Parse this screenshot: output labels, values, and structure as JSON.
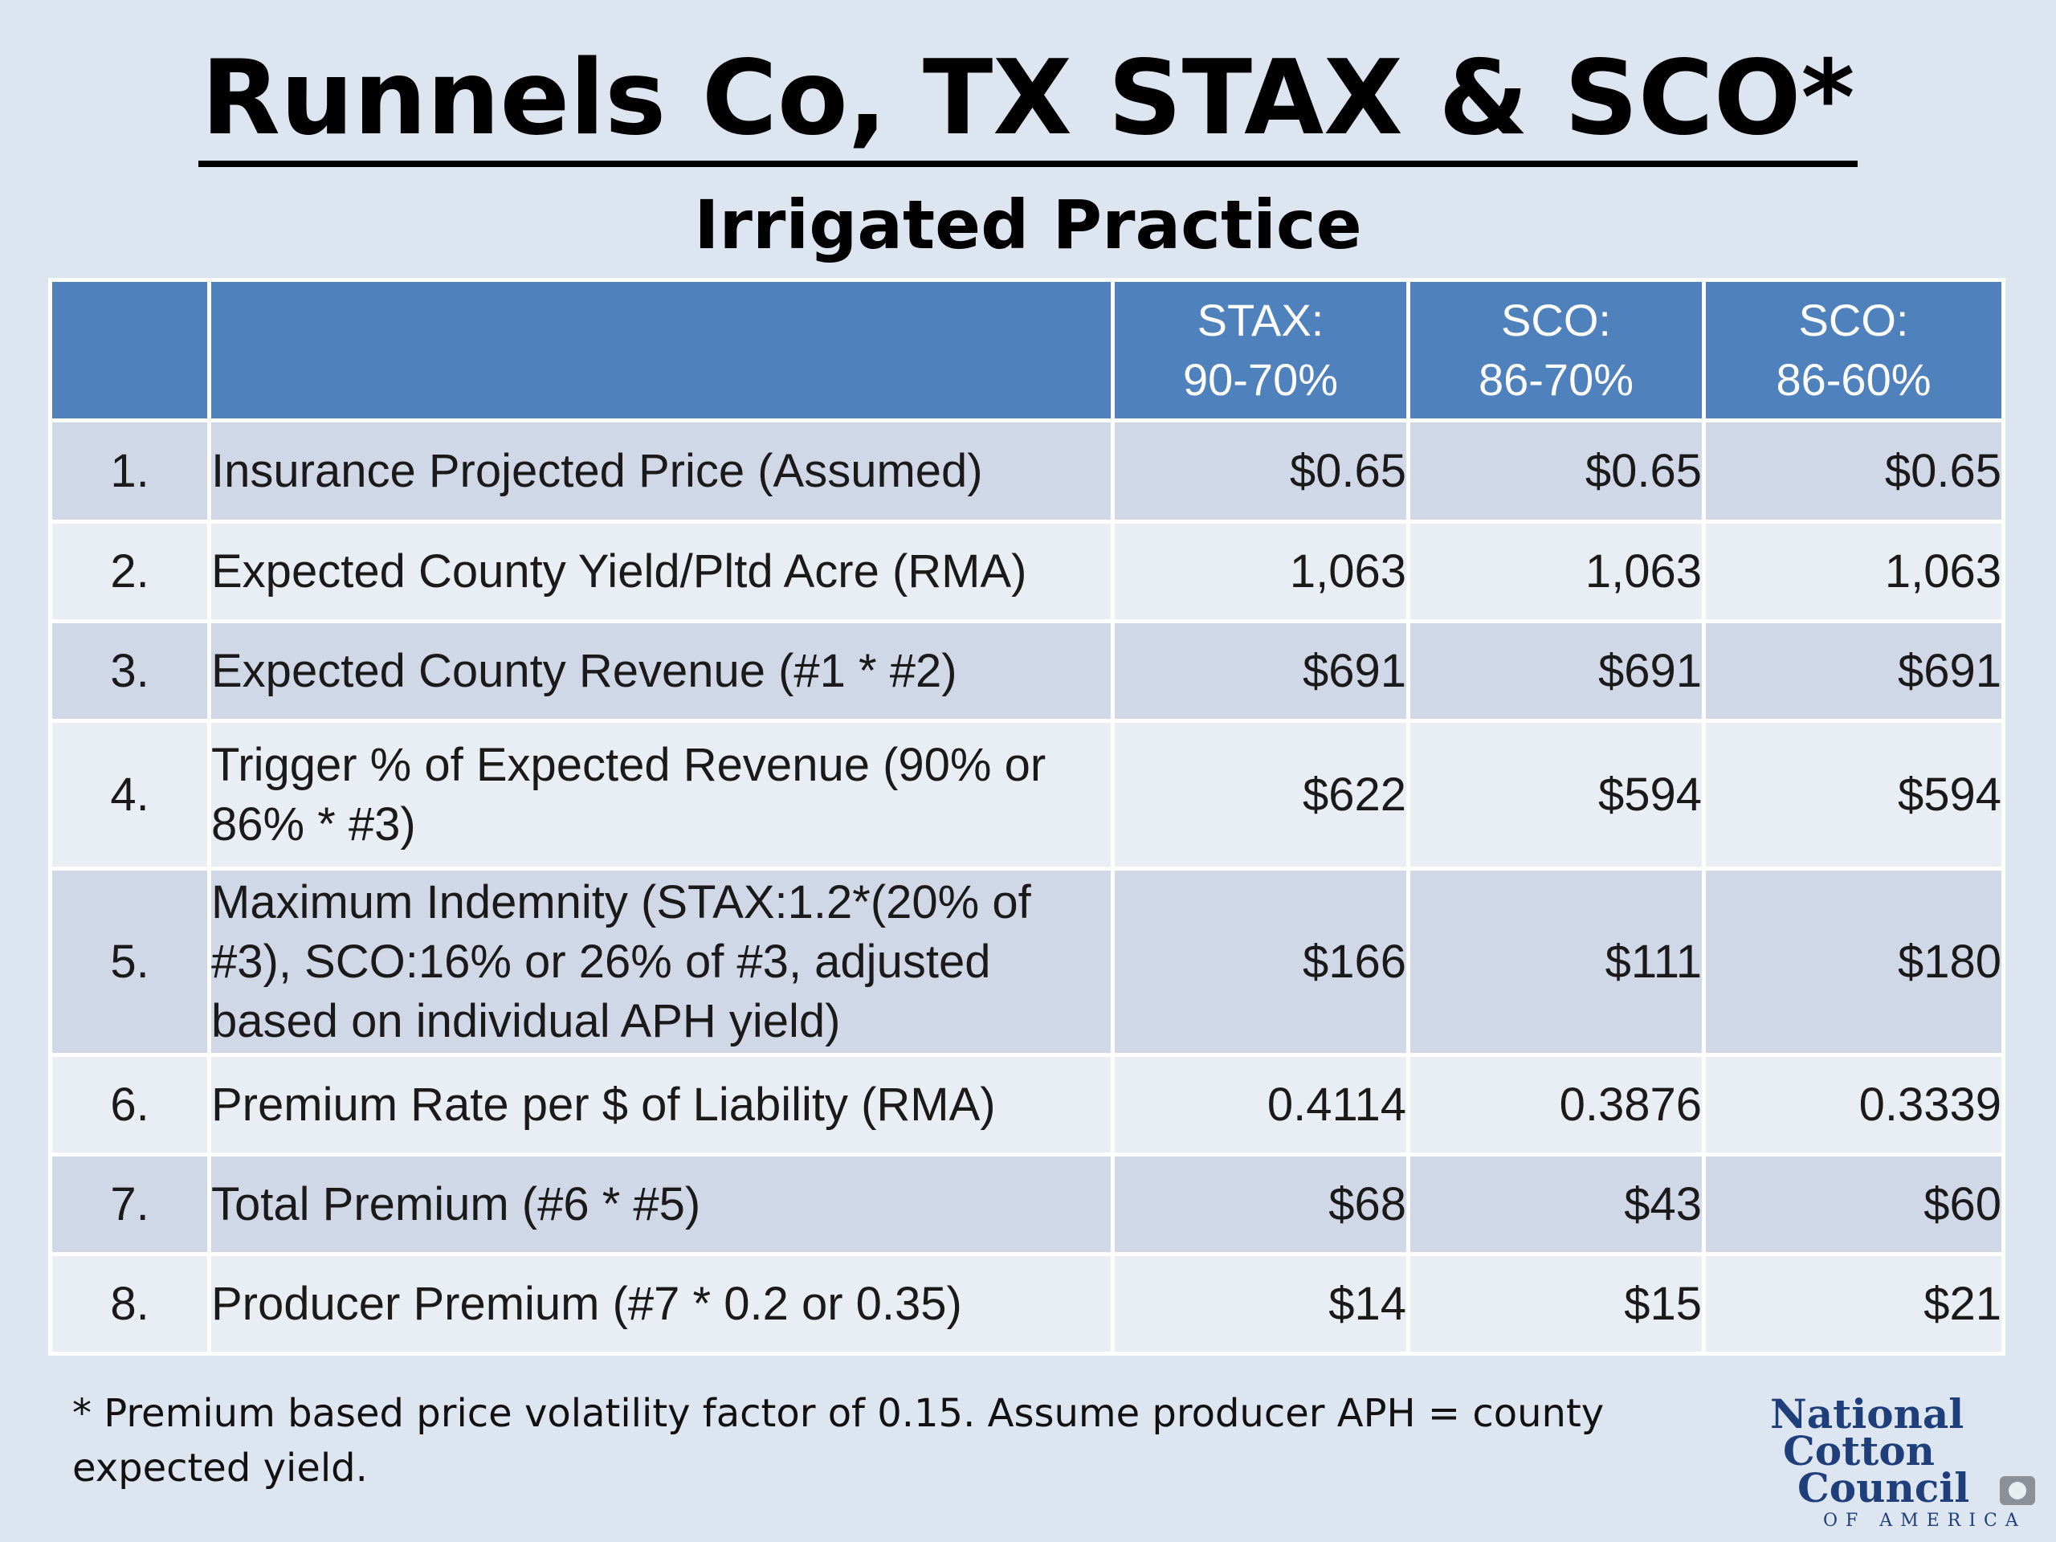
{
  "title": "Runnels Co, TX STAX & SCO*",
  "subtitle": "Irrigated Practice",
  "table": {
    "header": {
      "num": "",
      "desc": "",
      "col1": {
        "line1": "STAX:",
        "line2": "90-70%"
      },
      "col2": {
        "line1": "SCO:",
        "line2": "86-70%"
      },
      "col3": {
        "line1": "SCO:",
        "line2": "86-60%"
      }
    },
    "rows": [
      {
        "num": "1.",
        "desc": "Insurance Projected Price (Assumed)",
        "v1": "$0.65",
        "v2": "$0.65",
        "v3": "$0.65"
      },
      {
        "num": "2.",
        "desc": "Expected County Yield/Pltd Acre (RMA)",
        "v1": "1,063",
        "v2": "1,063",
        "v3": "1,063"
      },
      {
        "num": "3.",
        "desc": "Expected County Revenue (#1 * #2)",
        "v1": "$691",
        "v2": "$691",
        "v3": "$691"
      },
      {
        "num": "4.",
        "desc": "Trigger % of Expected Revenue (90% or 86% * #3)",
        "v1": "$622",
        "v2": "$594",
        "v3": "$594"
      },
      {
        "num": "5.",
        "desc": "Maximum Indemnity (STAX:1.2*(20% of #3), SCO:16% or 26% of #3, adjusted based on individual APH yield)",
        "v1": "$166",
        "v2": "$111",
        "v3": "$180"
      },
      {
        "num": "6.",
        "desc": "Premium Rate per $ of Liability (RMA)",
        "v1": "0.4114",
        "v2": "0.3876",
        "v3": "0.3339"
      },
      {
        "num": "7.",
        "desc": "Total Premium (#6 * #5)",
        "v1": "$68",
        "v2": "$43",
        "v3": "$60"
      },
      {
        "num": "8.",
        "desc": "Producer Premium (#7 * 0.2 or 0.35)",
        "v1": "$14",
        "v2": "$15",
        "v3": "$21"
      }
    ]
  },
  "footnote": "* Premium based price volatility factor of 0.15. Assume producer APH = county expected yield.",
  "logo": {
    "line1": "National",
    "line2": "Cotton",
    "line3": "Council",
    "line4": "OF AMERICA",
    "color": "#1f3f7a"
  },
  "colors": {
    "background": "#dde5f0",
    "header": "#4f81bd",
    "row_band_a": "#d0d8e8",
    "row_band_b": "#e9edf4"
  }
}
